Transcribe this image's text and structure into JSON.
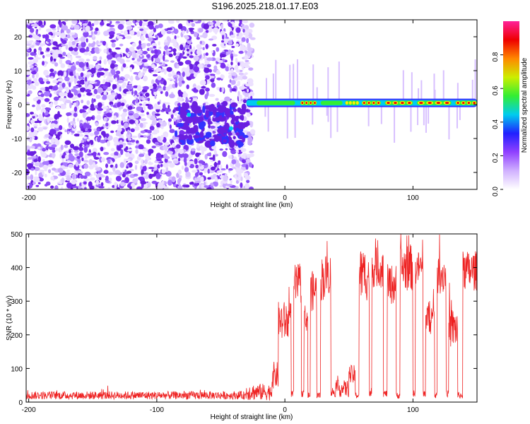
{
  "title": "S196.2025.218.01.17.E03",
  "colors": {
    "trace": "#ee2222",
    "background_dot": "#7a2ff0",
    "spectrum": [
      "#ffffff",
      "#d0b0ff",
      "#7a2ff0",
      "#3333ff",
      "#00ccee",
      "#33ee33",
      "#ffee00",
      "#ff8800",
      "#ee0000",
      "#ff33aa"
    ]
  },
  "chart_data": [
    {
      "type": "heatmap",
      "xlabel": "Height of straight line (km)",
      "ylabel": "Frequency (Hz)",
      "xlim": [
        -202,
        150
      ],
      "ylim": [
        -25,
        25
      ],
      "xticks": [
        -200,
        -100,
        0,
        100
      ],
      "yticks": [
        -20,
        -10,
        0,
        10,
        20
      ],
      "colorbar": {
        "label": "Normalized spectral amplitude",
        "range": [
          0.0,
          1.0
        ],
        "ticks": [
          0.0,
          0.2,
          0.4,
          0.6,
          0.8
        ]
      },
      "band": {
        "freq_hz": 0.5,
        "x_start_km": -30,
        "x_end_km": 150,
        "bright_segments": [
          {
            "x0": -22,
            "x1": 8,
            "level": 0.55
          },
          {
            "x0": 12,
            "x1": 25,
            "level": 0.8
          },
          {
            "x0": 28,
            "x1": 45,
            "level": 0.6
          },
          {
            "x0": 47,
            "x1": 58,
            "level": 0.75
          },
          {
            "x0": 60,
            "x1": 75,
            "level": 0.9
          },
          {
            "x0": 78,
            "x1": 100,
            "level": 0.85
          },
          {
            "x0": 103,
            "x1": 130,
            "level": 0.9
          },
          {
            "x0": 133,
            "x1": 150,
            "level": 0.8
          }
        ]
      },
      "noise_region": {
        "x0": -202,
        "x1": -25
      }
    },
    {
      "type": "line",
      "xlabel": "Height of straight line (km)",
      "ylabel": "SNR (10 * v/v)",
      "xlim": [
        -202,
        150
      ],
      "ylim": [
        0,
        500
      ],
      "xticks": [
        -200,
        -100,
        0,
        100
      ],
      "yticks": [
        0,
        100,
        200,
        300,
        400,
        500
      ],
      "segments": [
        {
          "x0": -202,
          "x1": -30,
          "level": 20,
          "noise": 12
        },
        {
          "x0": -30,
          "x1": -10,
          "level": 30,
          "noise": 25
        },
        {
          "x0": -10,
          "x1": -5,
          "level": 80,
          "noise": 40
        },
        {
          "x0": -5,
          "x1": 5,
          "level": 240,
          "noise": 60
        },
        {
          "x0": 5,
          "x1": 7,
          "level": 25,
          "noise": 10
        },
        {
          "x0": 7,
          "x1": 13,
          "level": 350,
          "noise": 60
        },
        {
          "x0": 13,
          "x1": 15,
          "level": 25,
          "noise": 10
        },
        {
          "x0": 15,
          "x1": 18,
          "level": 250,
          "noise": 40
        },
        {
          "x0": 18,
          "x1": 20,
          "level": 20,
          "noise": 10
        },
        {
          "x0": 20,
          "x1": 25,
          "level": 330,
          "noise": 60
        },
        {
          "x0": 25,
          "x1": 28,
          "level": 20,
          "noise": 10
        },
        {
          "x0": 28,
          "x1": 32,
          "level": 370,
          "noise": 70
        },
        {
          "x0": 32,
          "x1": 36,
          "level": 380,
          "noise": 60
        },
        {
          "x0": 36,
          "x1": 40,
          "level": 30,
          "noise": 15
        },
        {
          "x0": 40,
          "x1": 50,
          "level": 40,
          "noise": 25
        },
        {
          "x0": 50,
          "x1": 55,
          "level": 80,
          "noise": 30
        },
        {
          "x0": 55,
          "x1": 58,
          "level": 20,
          "noise": 10
        },
        {
          "x0": 58,
          "x1": 66,
          "level": 380,
          "noise": 80
        },
        {
          "x0": 66,
          "x1": 68,
          "level": 25,
          "noise": 10
        },
        {
          "x0": 68,
          "x1": 77,
          "level": 400,
          "noise": 60
        },
        {
          "x0": 77,
          "x1": 80,
          "level": 25,
          "noise": 10
        },
        {
          "x0": 80,
          "x1": 87,
          "level": 350,
          "noise": 60
        },
        {
          "x0": 87,
          "x1": 90,
          "level": 20,
          "noise": 10
        },
        {
          "x0": 90,
          "x1": 100,
          "level": 400,
          "noise": 70
        },
        {
          "x0": 100,
          "x1": 102,
          "level": 25,
          "noise": 10
        },
        {
          "x0": 102,
          "x1": 108,
          "level": 400,
          "noise": 50
        },
        {
          "x0": 108,
          "x1": 110,
          "level": 25,
          "noise": 10
        },
        {
          "x0": 110,
          "x1": 117,
          "level": 250,
          "noise": 50
        },
        {
          "x0": 117,
          "x1": 119,
          "level": 20,
          "noise": 10
        },
        {
          "x0": 119,
          "x1": 126,
          "level": 380,
          "noise": 60
        },
        {
          "x0": 126,
          "x1": 128,
          "level": 25,
          "noise": 10
        },
        {
          "x0": 128,
          "x1": 135,
          "level": 220,
          "noise": 60
        },
        {
          "x0": 135,
          "x1": 139,
          "level": 20,
          "noise": 10
        },
        {
          "x0": 139,
          "x1": 150,
          "level": 390,
          "noise": 60
        }
      ]
    }
  ]
}
